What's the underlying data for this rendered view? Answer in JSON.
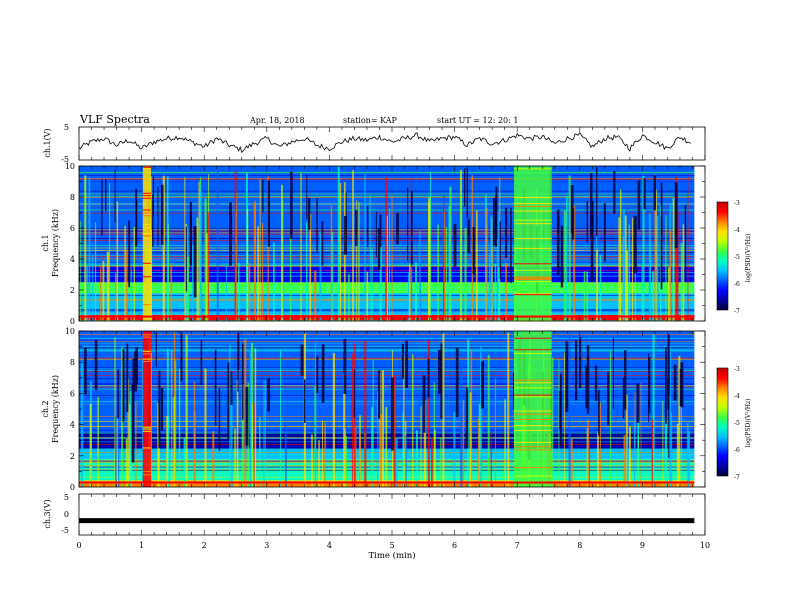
{
  "header": {
    "title": "VLF Spectra",
    "date": "Apr. 18, 2018",
    "station": "station= KAP",
    "start": "start  UT =   12: 20: 1"
  },
  "colors": {
    "colormap": [
      "#000040",
      "#0000a0",
      "#0000ff",
      "#0060ff",
      "#00c0ff",
      "#00ffc0",
      "#40ff40",
      "#c0ff00",
      "#ffe000",
      "#ff8000",
      "#ff0000",
      "#c00000"
    ],
    "trace": "#000000",
    "axis": "#000000"
  },
  "chart_data": [
    {
      "id": "ch1_waveform",
      "type": "line",
      "ylabel": "ch.1(V)",
      "ylim": [
        -5,
        5
      ],
      "y_ticklabels": [
        "5",
        "-5"
      ],
      "xlim": [
        0,
        10
      ],
      "x": [
        0,
        0.2,
        0.4,
        0.6,
        0.8,
        1.0,
        1.2,
        1.4,
        1.6,
        1.8,
        2.0,
        2.2,
        2.4,
        2.6,
        2.8,
        3.0,
        3.2,
        3.4,
        3.6,
        3.8,
        4.0,
        4.2,
        4.4,
        4.6,
        4.8,
        5.0,
        5.2,
        5.4,
        5.6,
        5.8,
        6.0,
        6.2,
        6.4,
        6.6,
        6.8,
        7.0,
        7.2,
        7.4,
        7.6,
        7.8,
        8.0,
        8.2,
        8.4,
        8.6,
        8.8,
        9.0,
        9.2,
        9.4,
        9.6,
        9.8
      ],
      "y": [
        -1.5,
        0.5,
        1.5,
        -0.5,
        1,
        -1.5,
        0.5,
        1.5,
        2,
        0.5,
        -1,
        1.5,
        -0.5,
        -2,
        0,
        1.5,
        -1,
        0.5,
        1.5,
        -0.5,
        -1.5,
        0.5,
        1.5,
        1,
        2,
        0.5,
        1.5,
        2.5,
        0.5,
        1.5,
        2,
        -0.5,
        1.5,
        0,
        1,
        2.5,
        1.5,
        2,
        0,
        1.5,
        2.5,
        -1,
        1.5,
        2,
        -1.5,
        2.5,
        0.5,
        -1.5,
        2,
        0
      ]
    },
    {
      "id": "ch1_spectrogram",
      "type": "heatmap",
      "channel_label": "ch.1",
      "ylabel": "Frequency (kHz)",
      "ylim": [
        0,
        10
      ],
      "y_ticklabels": [
        "0",
        "2",
        "4",
        "6",
        "8",
        "10"
      ],
      "xlim": [
        0,
        10
      ],
      "x_window_minutes": 9.83,
      "value_range": [
        -7,
        -3
      ],
      "colorbar_label": "log(PSD)(V²/Hz)",
      "colorbar_ticklabels": [
        "-3",
        "-4",
        "-5",
        "-6",
        "-7"
      ],
      "bands": [
        {
          "f0": 0,
          "f1": 0.4,
          "v": -3.4
        },
        {
          "f0": 0.4,
          "f1": 1.8,
          "v": -5.4
        },
        {
          "f0": 1.8,
          "f1": 2.5,
          "v": -4.9
        },
        {
          "f0": 2.5,
          "f1": 3.5,
          "v": -6.4
        },
        {
          "f0": 3.5,
          "f1": 5.3,
          "v": -5.9
        },
        {
          "f0": 5.3,
          "f1": 10,
          "v": -6.0
        }
      ],
      "broadband_events": [
        {
          "t0": 1.02,
          "t1": 1.15,
          "v": -4.2
        },
        {
          "t0": 6.95,
          "t1": 7.55,
          "v": -4.9
        }
      ]
    },
    {
      "id": "ch2_spectrogram",
      "type": "heatmap",
      "channel_label": "ch.2",
      "ylabel": "Frequency (kHz)",
      "ylim": [
        0,
        10
      ],
      "y_ticklabels": [
        "0",
        "2",
        "4",
        "6",
        "8",
        "10"
      ],
      "xlim": [
        0,
        10
      ],
      "x_window_minutes": 9.83,
      "value_range": [
        -7,
        -3
      ],
      "colorbar_label": "log(PSD)(V²/Hz)",
      "colorbar_ticklabels": [
        "-3",
        "-4",
        "-5",
        "-6",
        "-7"
      ],
      "bands": [
        {
          "f0": 0,
          "f1": 0.4,
          "v": -3.6
        },
        {
          "f0": 0.4,
          "f1": 1.8,
          "v": -5.3
        },
        {
          "f0": 1.8,
          "f1": 2.5,
          "v": -5.7
        },
        {
          "f0": 2.5,
          "f1": 3.5,
          "v": -6.6
        },
        {
          "f0": 3.5,
          "f1": 5.3,
          "v": -5.8
        },
        {
          "f0": 5.3,
          "f1": 10,
          "v": -6.0
        }
      ],
      "broadband_events": [
        {
          "t0": 1.02,
          "t1": 1.15,
          "v": -3.5
        },
        {
          "t0": 6.95,
          "t1": 7.55,
          "v": -4.9
        }
      ]
    },
    {
      "id": "ch3_waveform",
      "type": "line",
      "ylabel": "ch.3(V)",
      "ylim": [
        -5,
        5
      ],
      "y_ticklabels": [
        "5",
        "0",
        "-5"
      ],
      "xlim": [
        0,
        10
      ],
      "x": [
        0,
        9.83
      ],
      "y": [
        -1.5,
        -1.5
      ]
    }
  ],
  "x_axis": {
    "label": "Time (min)",
    "range": [
      0,
      10
    ],
    "ticklabels": [
      "0",
      "1",
      "2",
      "3",
      "4",
      "5",
      "6",
      "7",
      "8",
      "9",
      "10"
    ]
  }
}
